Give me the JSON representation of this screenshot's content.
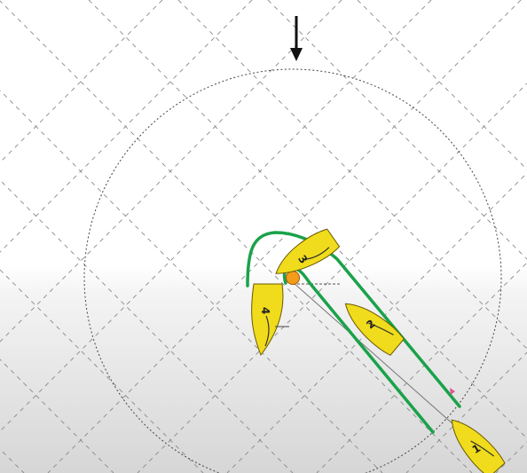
{
  "colors": {
    "water_top": "#ffffff",
    "water_bottom": "#d9d9d9",
    "grid": "#8a8a8a",
    "zone_circle": "#444444",
    "laylines": "#1aa24a",
    "boat_hull": "#f0dc1c",
    "boat_outline": "#6b5a00",
    "mark": "#f39c1a",
    "wind_arrow": "#111111",
    "pink_marker": "#e0559a"
  },
  "wind": {
    "icon": "wind-direction-arrow-icon",
    "direction": "down"
  },
  "mark": {
    "icon": "orange-buoy-icon"
  },
  "boats": [
    {
      "number": "1"
    },
    {
      "number": "2"
    },
    {
      "number": "3"
    },
    {
      "number": "4"
    }
  ]
}
